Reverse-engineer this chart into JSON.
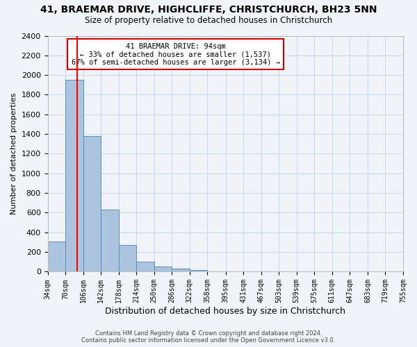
{
  "title": "41, BRAEMAR DRIVE, HIGHCLIFFE, CHRISTCHURCH, BH23 5NN",
  "subtitle": "Size of property relative to detached houses in Christchurch",
  "xlabel": "Distribution of detached houses by size in Christchurch",
  "ylabel": "Number of detached properties",
  "bar_values": [
    310,
    1950,
    1380,
    630,
    270,
    100,
    50,
    30,
    20,
    5,
    3,
    2,
    1,
    1,
    0,
    0,
    0,
    0,
    0,
    0
  ],
  "bin_edges": [
    34,
    70,
    106,
    142,
    178,
    214,
    250,
    286,
    322,
    358,
    395,
    431,
    467,
    503,
    539,
    575,
    611,
    647,
    683,
    719,
    755
  ],
  "tick_labels": [
    "34sqm",
    "70sqm",
    "106sqm",
    "142sqm",
    "178sqm",
    "214sqm",
    "250sqm",
    "286sqm",
    "322sqm",
    "358sqm",
    "395sqm",
    "431sqm",
    "467sqm",
    "503sqm",
    "539sqm",
    "575sqm",
    "611sqm",
    "647sqm",
    "683sqm",
    "719sqm",
    "755sqm"
  ],
  "bar_color": "#aac4e0",
  "bar_edge_color": "#5a8db8",
  "grid_color": "#c8d8e8",
  "red_line_x": 94,
  "annotation_line1": "41 BRAEMAR DRIVE: 94sqm",
  "annotation_line2": "← 33% of detached houses are smaller (1,537)",
  "annotation_line3": "67% of semi-detached houses are larger (3,134) →",
  "annotation_box_color": "#ffffff",
  "annotation_edge_color": "#cc0000",
  "ylim": [
    0,
    2400
  ],
  "yticks": [
    0,
    200,
    400,
    600,
    800,
    1000,
    1200,
    1400,
    1600,
    1800,
    2000,
    2200,
    2400
  ],
  "footer_line1": "Contains HM Land Registry data © Crown copyright and database right 2024.",
  "footer_line2": "Contains public sector information licensed under the Open Government Licence v3.0.",
  "bg_color": "#f0f4f8"
}
